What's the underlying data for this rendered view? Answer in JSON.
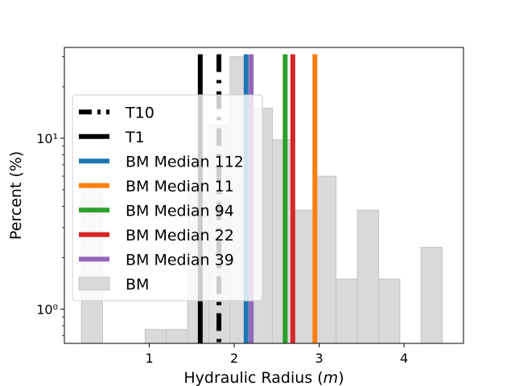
{
  "chart_data": {
    "type": "bar",
    "title": "",
    "xlabel": "Hydraulic Radius (m)",
    "ylabel": "Percent (%)",
    "x_scale": "linear",
    "y_scale": "log",
    "xlim": [
      0.0,
      4.7
    ],
    "ylim": [
      0.63,
      34
    ],
    "xticks": [
      1,
      2,
      3,
      4
    ],
    "yticks": [
      {
        "value": 1,
        "label": "10⁰"
      },
      {
        "value": 10,
        "label": "10¹"
      }
    ],
    "grid": false,
    "legend_position": "center-left",
    "histogram": {
      "name": "BM",
      "color": "#d9d9d9",
      "bins": [
        {
          "x0": 0.2,
          "x1": 0.45,
          "value": 5.5
        },
        {
          "x0": 0.95,
          "x1": 1.2,
          "value": 0.76
        },
        {
          "x0": 1.2,
          "x1": 1.45,
          "value": 0.76
        },
        {
          "x0": 1.45,
          "x1": 1.7,
          "value": 5.3
        },
        {
          "x0": 1.7,
          "x1": 1.95,
          "value": 12
        },
        {
          "x0": 1.95,
          "x1": 2.2,
          "value": 30
        },
        {
          "x0": 2.2,
          "x1": 2.45,
          "value": 15
        },
        {
          "x0": 2.45,
          "x1": 2.7,
          "value": 9.8
        },
        {
          "x0": 2.7,
          "x1": 2.95,
          "value": 3.8
        },
        {
          "x0": 2.95,
          "x1": 3.2,
          "value": 6
        },
        {
          "x0": 3.2,
          "x1": 3.45,
          "value": 1.5
        },
        {
          "x0": 3.45,
          "x1": 3.7,
          "value": 3.8
        },
        {
          "x0": 3.7,
          "x1": 3.95,
          "value": 1.5
        },
        {
          "x0": 4.2,
          "x1": 4.45,
          "value": 2.3
        }
      ]
    },
    "vertical_lines": [
      {
        "name": "T10",
        "x": 1.82,
        "color": "#000000",
        "style": "dashdot"
      },
      {
        "name": "T1",
        "x": 1.6,
        "color": "#000000",
        "style": "solid"
      },
      {
        "name": "BM Median 112",
        "x": 2.14,
        "color": "#1f77b4",
        "style": "solid"
      },
      {
        "name": "BM Median 11",
        "x": 2.95,
        "color": "#ff7f0e",
        "style": "solid"
      },
      {
        "name": "BM Median 94",
        "x": 2.6,
        "color": "#2ca02c",
        "style": "solid"
      },
      {
        "name": "BM Median 22",
        "x": 2.69,
        "color": "#d62728",
        "style": "solid"
      },
      {
        "name": "BM Median 39",
        "x": 2.2,
        "color": "#9467bd",
        "style": "solid"
      }
    ],
    "legend": [
      {
        "label": "T10",
        "kind": "line",
        "color": "#000000",
        "style": "dashdot"
      },
      {
        "label": "T1",
        "kind": "line",
        "color": "#000000",
        "style": "solid"
      },
      {
        "label": "BM Median 112",
        "kind": "line",
        "color": "#1f77b4",
        "style": "solid"
      },
      {
        "label": "BM Median 11",
        "kind": "line",
        "color": "#ff7f0e",
        "style": "solid"
      },
      {
        "label": "BM Median 94",
        "kind": "line",
        "color": "#2ca02c",
        "style": "solid"
      },
      {
        "label": "BM Median 22",
        "kind": "line",
        "color": "#d62728",
        "style": "solid"
      },
      {
        "label": "BM Median 39",
        "kind": "line",
        "color": "#9467bd",
        "style": "solid"
      },
      {
        "label": "BM",
        "kind": "patch",
        "color": "#d9d9d9",
        "style": "fill"
      }
    ]
  }
}
